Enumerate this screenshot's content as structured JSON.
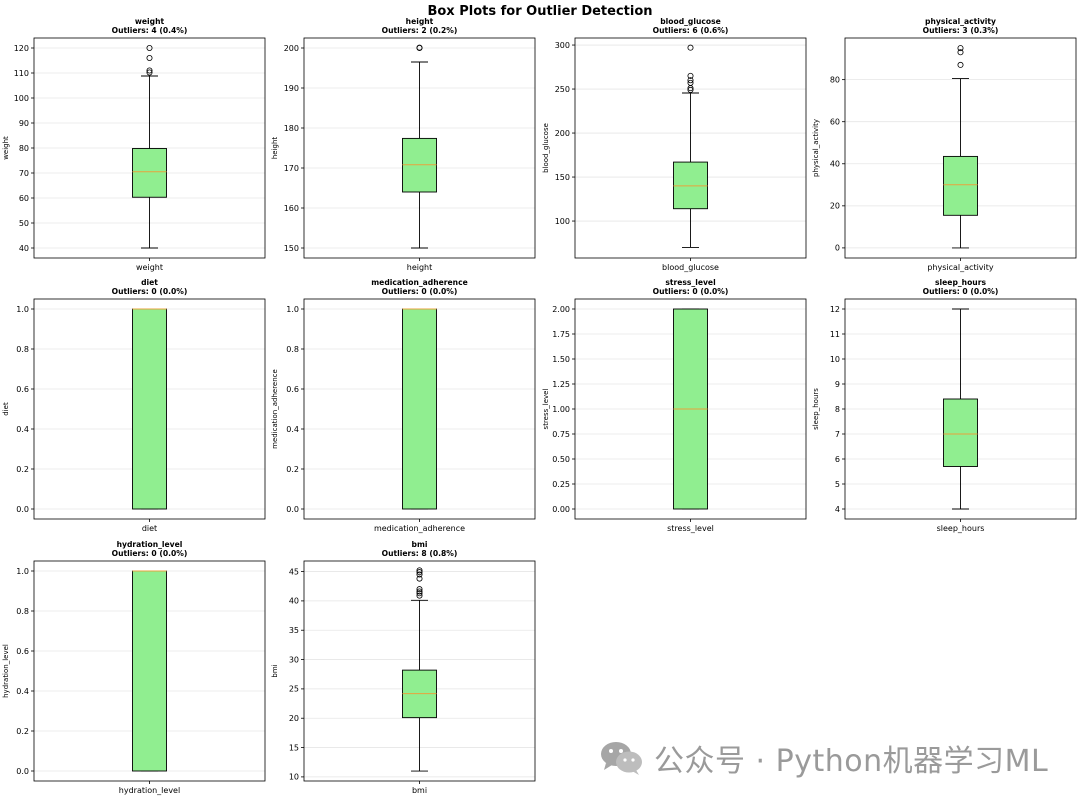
{
  "title": "Box Plots for Outlier Detection",
  "watermark_text": "公众号 · Python机器学习ML",
  "colors": {
    "box_fill": "#90ee90",
    "median": "#e8a33d",
    "grid": "#e6e6e6",
    "axis": "#000000"
  },
  "chart_data": [
    {
      "type": "box",
      "var": "weight",
      "title": "weight",
      "subtitle": "Outliers: 4 (0.4%)",
      "ylabel": "weight",
      "xlabel": "weight",
      "ylim": [
        36,
        124
      ],
      "yticks": [
        40,
        50,
        60,
        70,
        80,
        90,
        100,
        110,
        120
      ],
      "tick_labels": [
        "40",
        "50",
        "60",
        "70",
        "80",
        "90",
        "100",
        "110",
        "120"
      ],
      "whisker_low": 40,
      "q1": 60.3,
      "median": 70.5,
      "q3": 79.8,
      "whisker_high": 108.8,
      "outliers": [
        110.2,
        111,
        116,
        120
      ]
    },
    {
      "type": "box",
      "var": "height",
      "title": "height",
      "subtitle": "Outliers: 2 (0.2%)",
      "ylabel": "height",
      "xlabel": "height",
      "ylim": [
        147.5,
        202.5
      ],
      "yticks": [
        150,
        160,
        170,
        180,
        190,
        200
      ],
      "tick_labels": [
        "150",
        "160",
        "170",
        "180",
        "190",
        "200"
      ],
      "whisker_low": 150,
      "q1": 164,
      "median": 170.8,
      "q3": 177.4,
      "whisker_high": 196.5,
      "outliers": [
        200,
        200.1
      ]
    },
    {
      "type": "box",
      "var": "blood_glucose",
      "title": "blood_glucose",
      "subtitle": "Outliers: 6 (0.6%)",
      "ylabel": "blood_glucose",
      "xlabel": "blood_glucose",
      "ylim": [
        58,
        308
      ],
      "yticks": [
        100,
        150,
        200,
        250,
        300
      ],
      "tick_labels": [
        "100",
        "150",
        "200",
        "250",
        "300"
      ],
      "whisker_low": 70,
      "q1": 114,
      "median": 140,
      "q3": 167,
      "whisker_high": 245.5,
      "outliers": [
        249,
        251,
        257,
        260,
        265,
        297
      ]
    },
    {
      "type": "box",
      "var": "physical_activity",
      "title": "physical_activity",
      "subtitle": "Outliers: 3 (0.3%)",
      "ylabel": "physical_activity",
      "xlabel": "physical_activity",
      "ylim": [
        -4.8,
        99.8
      ],
      "yticks": [
        0,
        20,
        40,
        60,
        80
      ],
      "tick_labels": [
        "0",
        "20",
        "40",
        "60",
        "80"
      ],
      "whisker_low": 0,
      "q1": 15.5,
      "median": 30,
      "q3": 43.5,
      "whisker_high": 80.5,
      "outliers": [
        87,
        93,
        95
      ]
    },
    {
      "type": "box",
      "var": "diet",
      "title": "diet",
      "subtitle": "Outliers: 0 (0.0%)",
      "ylabel": "diet",
      "xlabel": "diet",
      "ylim": [
        -0.05,
        1.05
      ],
      "yticks": [
        0,
        0.2,
        0.4,
        0.6,
        0.8,
        1.0
      ],
      "tick_labels": [
        "0.0",
        "0.2",
        "0.4",
        "0.6",
        "0.8",
        "1.0"
      ],
      "whisker_low": 0,
      "q1": 0,
      "median": 1,
      "q3": 1,
      "whisker_high": 1,
      "outliers": []
    },
    {
      "type": "box",
      "var": "medication_adherence",
      "title": "medication_adherence",
      "subtitle": "Outliers: 0 (0.0%)",
      "ylabel": "medication_adherence",
      "xlabel": "medication_adherence",
      "ylim": [
        -0.05,
        1.05
      ],
      "yticks": [
        0,
        0.2,
        0.4,
        0.6,
        0.8,
        1.0
      ],
      "tick_labels": [
        "0.0",
        "0.2",
        "0.4",
        "0.6",
        "0.8",
        "1.0"
      ],
      "whisker_low": 0,
      "q1": 0,
      "median": 1,
      "q3": 1,
      "whisker_high": 1,
      "outliers": []
    },
    {
      "type": "box",
      "var": "stress_level",
      "title": "stress_level",
      "subtitle": "Outliers: 0 (0.0%)",
      "ylabel": "stress_level",
      "xlabel": "stress_level",
      "ylim": [
        -0.1,
        2.1
      ],
      "yticks": [
        0,
        0.25,
        0.5,
        0.75,
        1.0,
        1.25,
        1.5,
        1.75,
        2.0
      ],
      "tick_labels": [
        "0.00",
        "0.25",
        "0.50",
        "0.75",
        "1.00",
        "1.25",
        "1.50",
        "1.75",
        "2.00"
      ],
      "whisker_low": 0,
      "q1": 0,
      "median": 1,
      "q3": 2,
      "whisker_high": 2,
      "outliers": []
    },
    {
      "type": "box",
      "var": "sleep_hours",
      "title": "sleep_hours",
      "subtitle": "Outliers: 0 (0.0%)",
      "ylabel": "sleep_hours",
      "xlabel": "sleep_hours",
      "ylim": [
        3.6,
        12.4
      ],
      "yticks": [
        4,
        5,
        6,
        7,
        8,
        9,
        10,
        11,
        12
      ],
      "tick_labels": [
        "4",
        "5",
        "6",
        "7",
        "8",
        "9",
        "10",
        "11",
        "12"
      ],
      "whisker_low": 4,
      "q1": 5.7,
      "median": 7,
      "q3": 8.4,
      "whisker_high": 12,
      "outliers": []
    },
    {
      "type": "box",
      "var": "hydration_level",
      "title": "hydration_level",
      "subtitle": "Outliers: 0 (0.0%)",
      "ylabel": "hydration_level",
      "xlabel": "hydration_level",
      "ylim": [
        -0.05,
        1.05
      ],
      "yticks": [
        0,
        0.2,
        0.4,
        0.6,
        0.8,
        1.0
      ],
      "tick_labels": [
        "0.0",
        "0.2",
        "0.4",
        "0.6",
        "0.8",
        "1.0"
      ],
      "whisker_low": 0,
      "q1": 0,
      "median": 1,
      "q3": 1,
      "whisker_high": 1,
      "outliers": []
    },
    {
      "type": "box",
      "var": "bmi",
      "title": "bmi",
      "subtitle": "Outliers: 8 (0.8%)",
      "ylabel": "bmi",
      "xlabel": "bmi",
      "ylim": [
        9.3,
        46.8
      ],
      "yticks": [
        10,
        15,
        20,
        25,
        30,
        35,
        40,
        45
      ],
      "tick_labels": [
        "10",
        "15",
        "20",
        "25",
        "30",
        "35",
        "40",
        "45"
      ],
      "whisker_low": 11,
      "q1": 20.1,
      "median": 24.2,
      "q3": 28.2,
      "whisker_high": 40.1,
      "outliers": [
        40.9,
        41.3,
        41.6,
        42,
        43.8,
        44.5,
        44.9,
        45.2
      ]
    }
  ]
}
